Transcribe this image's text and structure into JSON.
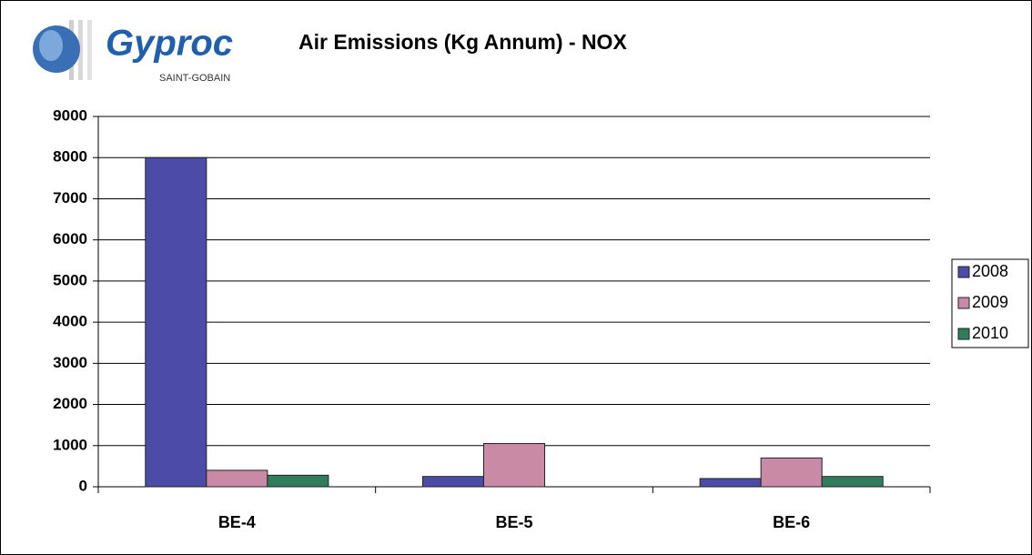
{
  "logo": {
    "name": "Gyproc",
    "subtitle": "SAINT-GOBAIN"
  },
  "chart_data": {
    "type": "bar",
    "title": "Air Emissions (Kg Annum) - NOX",
    "categories": [
      "BE-4",
      "BE-5",
      "BE-6"
    ],
    "series": [
      {
        "name": "2008",
        "color": "#4c4ca8",
        "values": [
          8000,
          250,
          200
        ]
      },
      {
        "name": "2009",
        "color": "#c98aa6",
        "values": [
          400,
          1050,
          700
        ]
      },
      {
        "name": "2010",
        "color": "#2f7d5c",
        "values": [
          280,
          null,
          250
        ]
      }
    ],
    "ylim": [
      0,
      9000
    ],
    "yticks": [
      0,
      1000,
      2000,
      3000,
      4000,
      5000,
      6000,
      7000,
      8000,
      9000
    ],
    "grid": true,
    "legend": "right"
  }
}
